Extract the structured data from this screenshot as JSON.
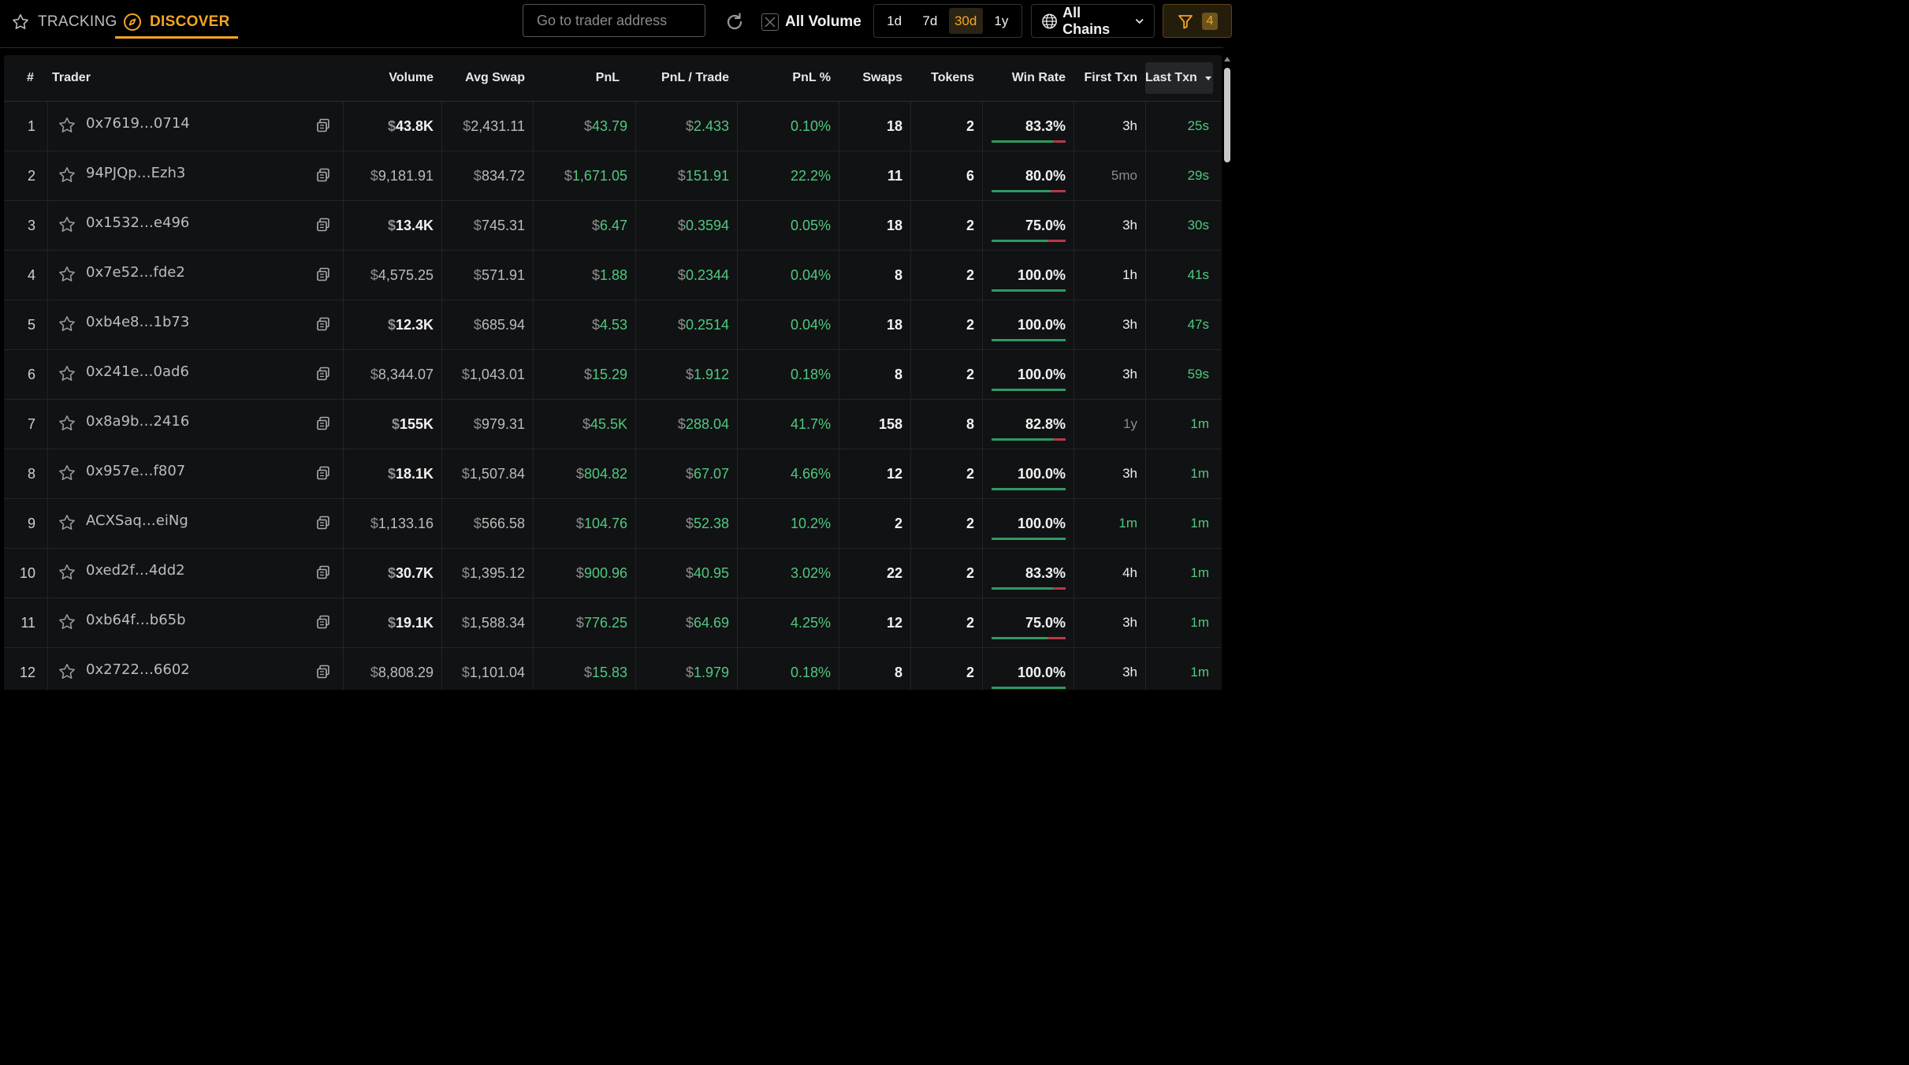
{
  "nav": {
    "tracking_label": "TRACKING",
    "discover_label": "DISCOVER",
    "accent": "#f5a524"
  },
  "search": {
    "placeholder": "Go to trader address",
    "value": ""
  },
  "all_volume": {
    "label": "All Volume",
    "checked": false
  },
  "periods": [
    {
      "label": "1d",
      "active": false
    },
    {
      "label": "7d",
      "active": false
    },
    {
      "label": "30d",
      "active": true
    },
    {
      "label": "1y",
      "active": false
    }
  ],
  "chains": {
    "label": "All Chains"
  },
  "filter": {
    "count": "4"
  },
  "table": {
    "headers": {
      "rank": "#",
      "trader": "Trader",
      "volume": "Volume",
      "avg_swap": "Avg Swap",
      "pnl": "PnL",
      "pnl_trade": "PnL / Trade",
      "pnl_pct": "PnL %",
      "swaps": "Swaps",
      "tokens": "Tokens",
      "win_rate": "Win Rate",
      "first_txn": "First Txn",
      "last_txn": "Last Txn"
    },
    "sort": {
      "column": "last_txn",
      "direction": "desc"
    },
    "rows": [
      {
        "rank": "1",
        "trader": "0x7619…0714",
        "volume": "43.8K",
        "volume_bold": true,
        "avg_swap": "2,431.11",
        "pnl": "43.79",
        "pnl_trade": "2.433",
        "pnl_pct": "0.10%",
        "swaps": "18",
        "tokens": "2",
        "win_rate": "83.3%",
        "win_fraction": 0.833,
        "first_txn": "3h",
        "first_style": "white",
        "last_txn": "25s"
      },
      {
        "rank": "2",
        "trader": "94PJQp…Ezh3",
        "volume": "9,181.91",
        "volume_bold": false,
        "avg_swap": "834.72",
        "pnl": "1,671.05",
        "pnl_trade": "151.91",
        "pnl_pct": "22.2%",
        "swaps": "11",
        "tokens": "6",
        "win_rate": "80.0%",
        "win_fraction": 0.8,
        "first_txn": "5mo",
        "first_style": "dim",
        "last_txn": "29s"
      },
      {
        "rank": "3",
        "trader": "0x1532…e496",
        "volume": "13.4K",
        "volume_bold": true,
        "avg_swap": "745.31",
        "pnl": "6.47",
        "pnl_trade": "0.3594",
        "pnl_pct": "0.05%",
        "swaps": "18",
        "tokens": "2",
        "win_rate": "75.0%",
        "win_fraction": 0.75,
        "first_txn": "3h",
        "first_style": "white",
        "last_txn": "30s"
      },
      {
        "rank": "4",
        "trader": "0x7e52…fde2",
        "volume": "4,575.25",
        "volume_bold": false,
        "avg_swap": "571.91",
        "pnl": "1.88",
        "pnl_trade": "0.2344",
        "pnl_pct": "0.04%",
        "swaps": "8",
        "tokens": "2",
        "win_rate": "100.0%",
        "win_fraction": 1.0,
        "first_txn": "1h",
        "first_style": "white",
        "last_txn": "41s"
      },
      {
        "rank": "5",
        "trader": "0xb4e8…1b73",
        "volume": "12.3K",
        "volume_bold": true,
        "avg_swap": "685.94",
        "pnl": "4.53",
        "pnl_trade": "0.2514",
        "pnl_pct": "0.04%",
        "swaps": "18",
        "tokens": "2",
        "win_rate": "100.0%",
        "win_fraction": 1.0,
        "first_txn": "3h",
        "first_style": "white",
        "last_txn": "47s"
      },
      {
        "rank": "6",
        "trader": "0x241e…0ad6",
        "volume": "8,344.07",
        "volume_bold": false,
        "avg_swap": "1,043.01",
        "pnl": "15.29",
        "pnl_trade": "1.912",
        "pnl_pct": "0.18%",
        "swaps": "8",
        "tokens": "2",
        "win_rate": "100.0%",
        "win_fraction": 1.0,
        "first_txn": "3h",
        "first_style": "white",
        "last_txn": "59s"
      },
      {
        "rank": "7",
        "trader": "0x8a9b…2416",
        "volume": "155K",
        "volume_bold": true,
        "avg_swap": "979.31",
        "pnl": "45.5K",
        "pnl_trade": "288.04",
        "pnl_pct": "41.7%",
        "swaps": "158",
        "tokens": "8",
        "win_rate": "82.8%",
        "win_fraction": 0.828,
        "first_txn": "1y",
        "first_style": "dim",
        "last_txn": "1m"
      },
      {
        "rank": "8",
        "trader": "0x957e…f807",
        "volume": "18.1K",
        "volume_bold": true,
        "avg_swap": "1,507.84",
        "pnl": "804.82",
        "pnl_trade": "67.07",
        "pnl_pct": "4.66%",
        "swaps": "12",
        "tokens": "2",
        "win_rate": "100.0%",
        "win_fraction": 1.0,
        "first_txn": "3h",
        "first_style": "white",
        "last_txn": "1m"
      },
      {
        "rank": "9",
        "trader": "ACXSaq…eiNg",
        "volume": "1,133.16",
        "volume_bold": false,
        "avg_swap": "566.58",
        "pnl": "104.76",
        "pnl_trade": "52.38",
        "pnl_pct": "10.2%",
        "swaps": "2",
        "tokens": "2",
        "win_rate": "100.0%",
        "win_fraction": 1.0,
        "first_txn": "1m",
        "first_style": "green",
        "last_txn": "1m"
      },
      {
        "rank": "10",
        "trader": "0xed2f…4dd2",
        "volume": "30.7K",
        "volume_bold": true,
        "avg_swap": "1,395.12",
        "pnl": "900.96",
        "pnl_trade": "40.95",
        "pnl_pct": "3.02%",
        "swaps": "22",
        "tokens": "2",
        "win_rate": "83.3%",
        "win_fraction": 0.833,
        "first_txn": "4h",
        "first_style": "white",
        "last_txn": "1m"
      },
      {
        "rank": "11",
        "trader": "0xb64f…b65b",
        "volume": "19.1K",
        "volume_bold": true,
        "avg_swap": "1,588.34",
        "pnl": "776.25",
        "pnl_trade": "64.69",
        "pnl_pct": "4.25%",
        "swaps": "12",
        "tokens": "2",
        "win_rate": "75.0%",
        "win_fraction": 0.75,
        "first_txn": "3h",
        "first_style": "white",
        "last_txn": "1m"
      },
      {
        "rank": "12",
        "trader": "0x2722…6602",
        "volume": "8,808.29",
        "volume_bold": false,
        "avg_swap": "1,101.04",
        "pnl": "15.83",
        "pnl_trade": "1.979",
        "pnl_pct": "0.18%",
        "swaps": "8",
        "tokens": "2",
        "win_rate": "100.0%",
        "win_fraction": 1.0,
        "first_txn": "3h",
        "first_style": "white",
        "last_txn": "1m"
      }
    ]
  },
  "colors": {
    "positive": "#4fc97f",
    "win_bar": "#2f9a62",
    "loss_bar": "#b43a48",
    "background": "#000000",
    "table_bg": "#111214"
  }
}
